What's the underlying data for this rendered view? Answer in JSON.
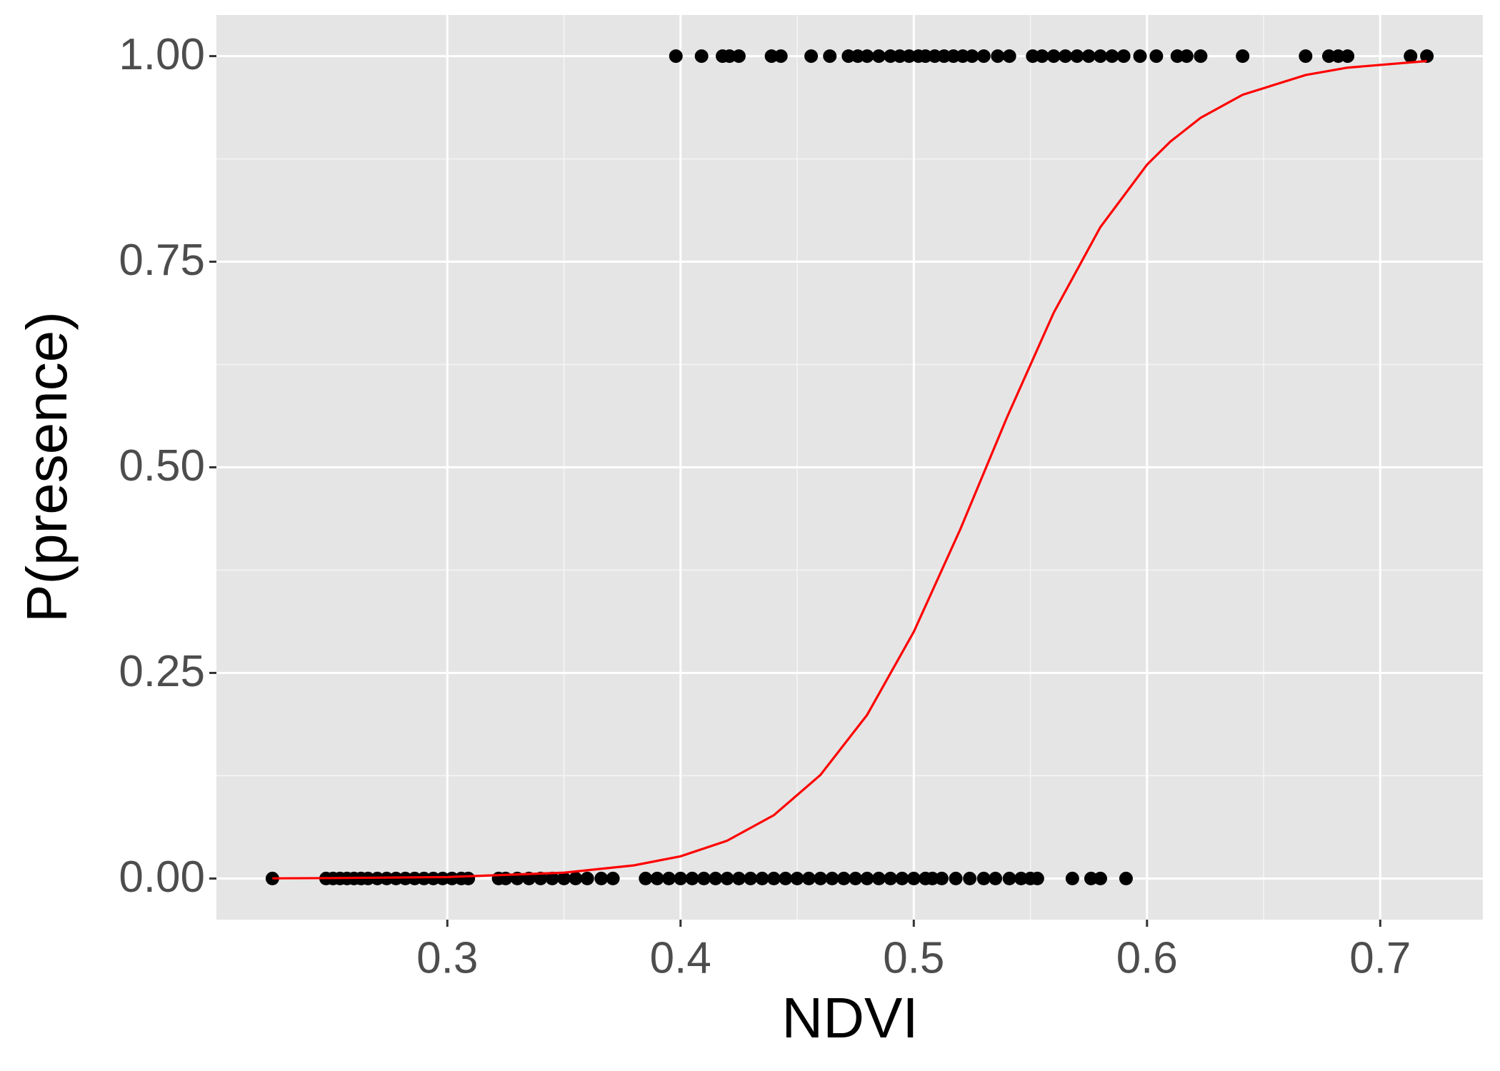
{
  "chart_data": {
    "type": "scatter",
    "x_label": "NDVI",
    "y_label": "P(presence)",
    "xlim": [
      0.201,
      0.744
    ],
    "ylim": [
      -0.05,
      1.05
    ],
    "xticks": [
      0.3,
      0.4,
      0.5,
      0.6,
      0.7
    ],
    "yticks": [
      {
        "value": 0,
        "label": "0.00"
      },
      {
        "value": 0.25,
        "label": "0.25"
      },
      {
        "value": 0.5,
        "label": "0.50"
      },
      {
        "value": 0.75,
        "label": "0.75"
      },
      {
        "value": 1,
        "label": "1.00"
      }
    ],
    "grid": true,
    "series": [
      {
        "type": "scatter",
        "color": "#000000",
        "x": [
          0.225,
          0.248,
          0.251,
          0.254,
          0.257,
          0.26,
          0.263,
          0.266,
          0.27,
          0.274,
          0.278,
          0.282,
          0.286,
          0.29,
          0.294,
          0.298,
          0.302,
          0.306,
          0.309,
          0.322,
          0.325,
          0.33,
          0.335,
          0.34,
          0.345,
          0.35,
          0.355,
          0.36,
          0.366,
          0.371,
          0.385,
          0.39,
          0.395,
          0.4,
          0.405,
          0.41,
          0.415,
          0.42,
          0.425,
          0.43,
          0.435,
          0.44,
          0.445,
          0.45,
          0.455,
          0.46,
          0.465,
          0.47,
          0.475,
          0.48,
          0.485,
          0.49,
          0.495,
          0.5,
          0.505,
          0.508,
          0.512,
          0.518,
          0.524,
          0.53,
          0.535,
          0.541,
          0.546,
          0.55,
          0.553,
          0.568,
          0.576,
          0.58,
          0.591,
          0.398,
          0.409,
          0.418,
          0.421,
          0.425,
          0.439,
          0.443,
          0.456,
          0.464,
          0.472,
          0.476,
          0.48,
          0.485,
          0.49,
          0.494,
          0.498,
          0.502,
          0.505,
          0.509,
          0.513,
          0.517,
          0.521,
          0.525,
          0.53,
          0.536,
          0.541,
          0.551,
          0.555,
          0.56,
          0.565,
          0.57,
          0.575,
          0.58,
          0.585,
          0.59,
          0.597,
          0.604,
          0.613,
          0.617,
          0.623,
          0.641,
          0.668,
          0.678,
          0.682,
          0.686,
          0.713,
          0.72
        ],
        "values": [
          0,
          0,
          0,
          0,
          0,
          0,
          0,
          0,
          0,
          0,
          0,
          0,
          0,
          0,
          0,
          0,
          0,
          0,
          0,
          0,
          0,
          0,
          0,
          0,
          0,
          0,
          0,
          0,
          0,
          0,
          0,
          0,
          0,
          0,
          0,
          0,
          0,
          0,
          0,
          0,
          0,
          0,
          0,
          0,
          0,
          0,
          0,
          0,
          0,
          0,
          0,
          0,
          0,
          0,
          0,
          0,
          0,
          0,
          0,
          0,
          0,
          0,
          0,
          0,
          0,
          0,
          0,
          0,
          0,
          1,
          1,
          1,
          1,
          1,
          1,
          1,
          1,
          1,
          1,
          1,
          1,
          1,
          1,
          1,
          1,
          1,
          1,
          1,
          1,
          1,
          1,
          1,
          1,
          1,
          1,
          1,
          1,
          1,
          1,
          1,
          1,
          1,
          1,
          1,
          1,
          1,
          1,
          1,
          1,
          1,
          1,
          1,
          1,
          1,
          1,
          1
        ]
      },
      {
        "type": "line",
        "color": "#ff0000",
        "x": [
          0.225,
          0.25,
          0.3,
          0.35,
          0.38,
          0.4,
          0.42,
          0.44,
          0.46,
          0.48,
          0.5,
          0.52,
          0.54,
          0.56,
          0.58,
          0.6,
          0.61,
          0.623,
          0.641,
          0.668,
          0.686,
          0.72
        ],
        "values": [
          0.0002,
          0.0005,
          0.0018,
          0.0071,
          0.016,
          0.027,
          0.046,
          0.077,
          0.126,
          0.199,
          0.3,
          0.425,
          0.561,
          0.688,
          0.792,
          0.868,
          0.896,
          0.925,
          0.953,
          0.977,
          0.986,
          0.994
        ]
      }
    ]
  }
}
